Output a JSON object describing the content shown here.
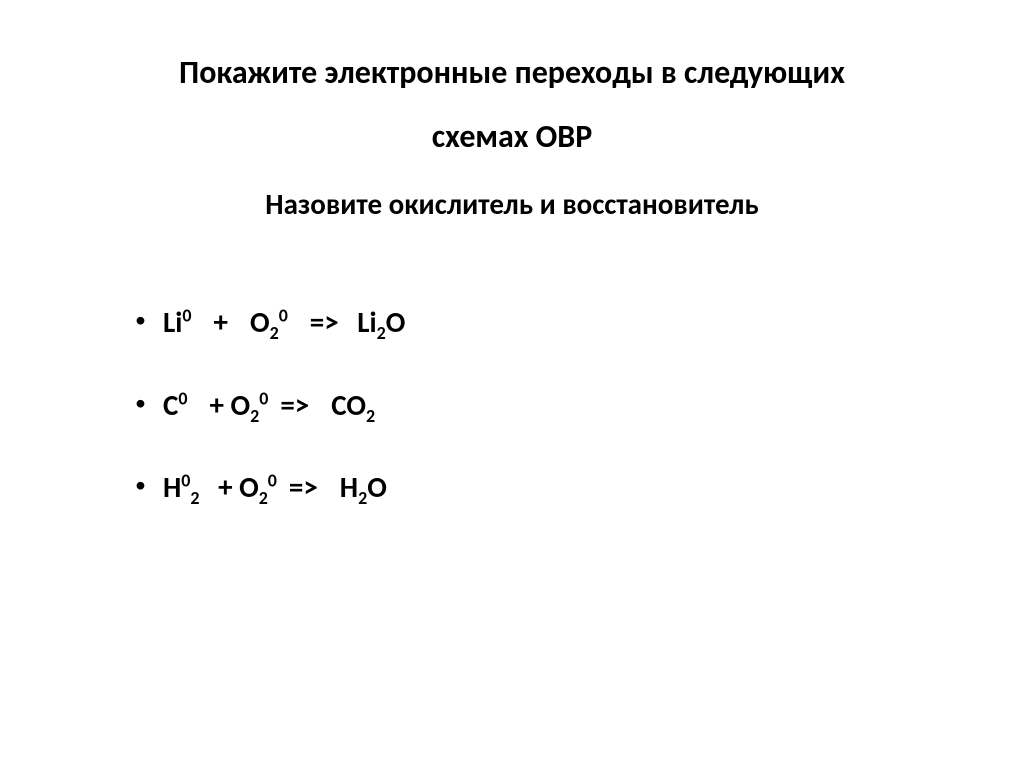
{
  "title": {
    "line1": "Покажите электронные переходы в следующих",
    "line2": "схемах ОВР",
    "line3": "Назовите окислитель и восстановитель"
  },
  "equations": [
    {
      "parts": [
        {
          "t": "Li"
        },
        {
          "t": "0",
          "sup": true
        },
        {
          "space": "sp8"
        },
        {
          "t": "+"
        },
        {
          "space": "sp8"
        },
        {
          "t": "O"
        },
        {
          "t": "2",
          "sub": true
        },
        {
          "t": "0",
          "sup": true
        },
        {
          "space": "sp8"
        },
        {
          "t": "=>"
        },
        {
          "space": "sp4"
        },
        {
          "t": " Li"
        },
        {
          "t": "2",
          "sub": true
        },
        {
          "t": "O"
        }
      ]
    },
    {
      "parts": [
        {
          "t": "C"
        },
        {
          "t": "0",
          "sup": true
        },
        {
          "space": "sp8"
        },
        {
          "t": "+ O"
        },
        {
          "t": "2",
          "sub": true
        },
        {
          "t": "0",
          "sup": true
        },
        {
          "space": "sp4"
        },
        {
          "t": "=>"
        },
        {
          "space": "sp8"
        },
        {
          "t": "CO"
        },
        {
          "t": "2",
          "sub": true
        }
      ]
    },
    {
      "parts": [
        {
          "t": "H"
        },
        {
          "t": "0",
          "sup": true
        },
        {
          "t": "2",
          "sub": true
        },
        {
          "space": "sp4"
        },
        {
          "t": " + O"
        },
        {
          "t": "2",
          "sub": true
        },
        {
          "t": "0",
          "sup": true
        },
        {
          "space": "sp4"
        },
        {
          "t": "=>"
        },
        {
          "space": "sp8"
        },
        {
          "t": "H"
        },
        {
          "t": "2",
          "sub": true
        },
        {
          "t": "O"
        }
      ]
    }
  ],
  "style": {
    "background_color": "#ffffff",
    "text_color": "#000000",
    "title_fontsize": 32,
    "subtitle_fontsize": 29,
    "body_fontsize": 29,
    "font_weight_title": 700,
    "font_weight_body": 700,
    "bullet_color": "#000000"
  }
}
